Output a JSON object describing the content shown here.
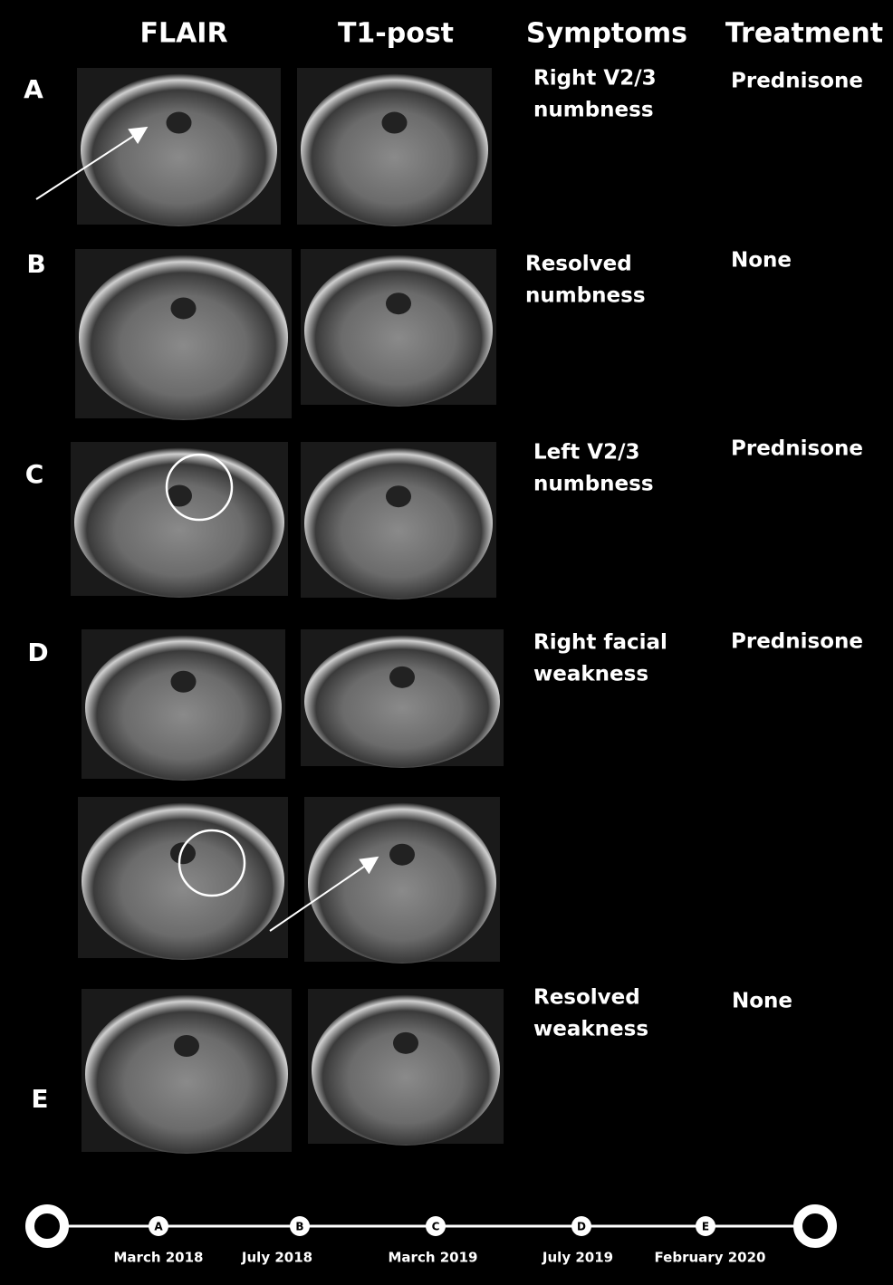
{
  "headers": [
    "FLAIR",
    "T1-post",
    "Symptoms",
    "Treatment"
  ],
  "rows": [
    {
      "label": "A",
      "symptoms": [
        "Right V2/3",
        "numbness"
      ],
      "treatment": "Prednisone"
    },
    {
      "label": "B",
      "symptoms": [
        "Resolved",
        "numbness"
      ],
      "treatment": "None"
    },
    {
      "label": "C",
      "symptoms": [
        "Left V2/3",
        "numbness"
      ],
      "treatment": "Prednisone"
    },
    {
      "label": "D",
      "symptoms": [
        "Right facial",
        "weakness"
      ],
      "treatment": "Prednisone"
    },
    {
      "label": "E",
      "symptoms": [
        "Resolved",
        "weakness"
      ],
      "treatment": "None"
    }
  ],
  "timeline": {
    "markers": [
      "A",
      "B",
      "C",
      "D",
      "E"
    ],
    "dates": [
      "March 2018",
      "July 2018",
      "March 2019",
      "July 2019",
      "February 2020"
    ]
  }
}
